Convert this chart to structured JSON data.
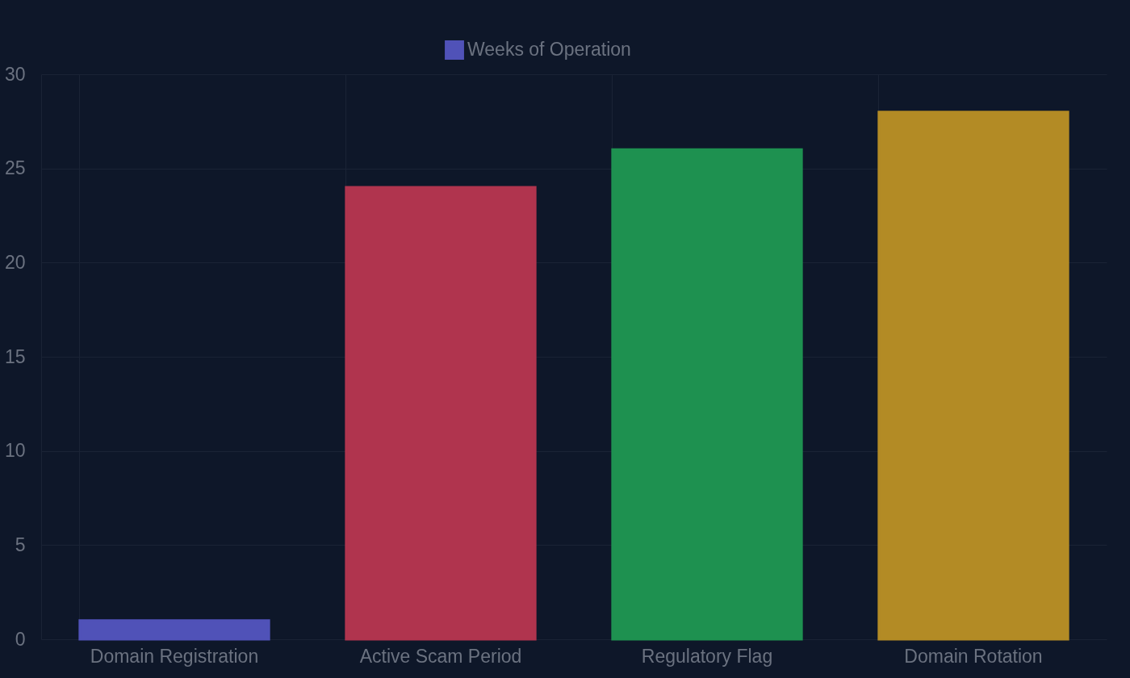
{
  "chart_data": {
    "type": "bar",
    "categories": [
      "Domain Registration",
      "Active Scam Period",
      "Regulatory Flag",
      "Domain Rotation"
    ],
    "series": [
      {
        "name": "Weeks of Operation",
        "colors": [
          "#5052b8",
          "#b0344e",
          "#1e9150",
          "#b38b25"
        ],
        "values": [
          1,
          24,
          26,
          28
        ]
      }
    ],
    "ylim": [
      0,
      30
    ],
    "yticks": [
      0,
      5,
      10,
      15,
      20,
      25,
      30
    ],
    "grid": true,
    "legend": "top"
  }
}
